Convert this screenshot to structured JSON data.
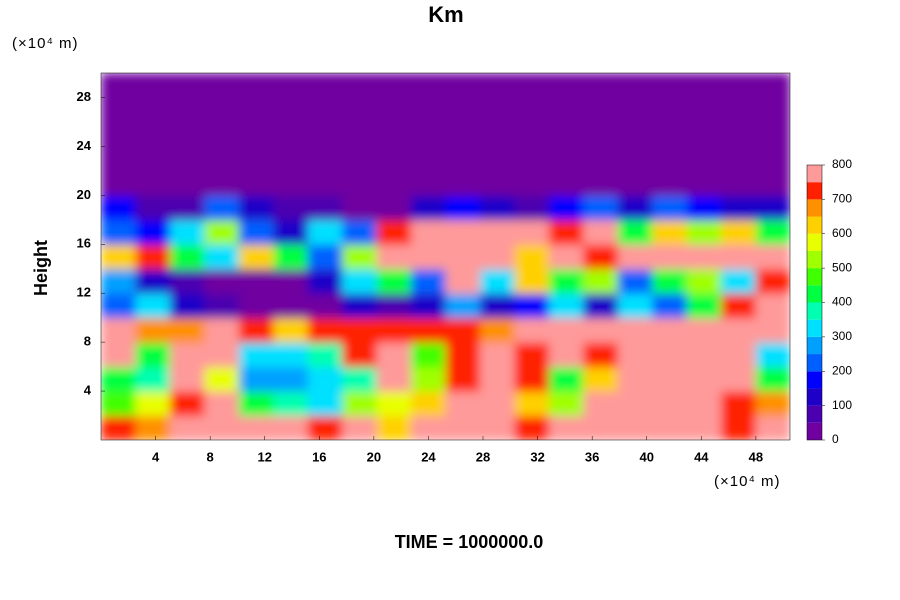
{
  "chart_data": {
    "type": "heatmap",
    "title": "Km",
    "ylabel": "Height",
    "y_unit": "(×10⁴ m)",
    "x_unit": "(×10⁴ m)",
    "footer": "TIME = 1000000.0",
    "xlim": [
      0,
      50.5
    ],
    "ylim": [
      0,
      30
    ],
    "xticks": [
      4,
      8,
      12,
      16,
      20,
      24,
      28,
      32,
      36,
      40,
      44,
      48
    ],
    "yticks": [
      4,
      8,
      12,
      16,
      20,
      24,
      28
    ],
    "levels": [
      0,
      50,
      100,
      150,
      200,
      250,
      300,
      350,
      400,
      450,
      500,
      550,
      600,
      650,
      700,
      750,
      800
    ],
    "colorbar_ticks": [
      0,
      100,
      200,
      300,
      400,
      500,
      600,
      700,
      800
    ],
    "colors": [
      "#7000a0",
      "#4b00b0",
      "#1e00c8",
      "#0000ff",
      "#0060ff",
      "#00a0ff",
      "#00e0ff",
      "#00ffb0",
      "#00ff40",
      "#40ff00",
      "#a0ff00",
      "#e8ff00",
      "#ffd000",
      "#ff9000",
      "#ff2000",
      "#ff9a9a"
    ],
    "z": [
      [
        700,
        650,
        800,
        800,
        800,
        800,
        700,
        800,
        600,
        800,
        800,
        800,
        700,
        800,
        800,
        800,
        800,
        800,
        700,
        800
      ],
      [
        450,
        550,
        700,
        800,
        400,
        350,
        300,
        500,
        550,
        600,
        800,
        800,
        600,
        500,
        800,
        800,
        780,
        800,
        720,
        650
      ],
      [
        400,
        350,
        800,
        550,
        250,
        250,
        300,
        350,
        800,
        500,
        700,
        800,
        700,
        400,
        600,
        800,
        800,
        800,
        800,
        400
      ],
      [
        800,
        400,
        800,
        800,
        300,
        300,
        350,
        720,
        800,
        450,
        700,
        780,
        720,
        800,
        720,
        800,
        800,
        800,
        800,
        300
      ],
      [
        800,
        650,
        650,
        800,
        720,
        600,
        720,
        700,
        720,
        700,
        720,
        650,
        780,
        800,
        800,
        800,
        800,
        800,
        800,
        800
      ],
      [
        200,
        300,
        100,
        50,
        20,
        20,
        20,
        100,
        50,
        100,
        250,
        100,
        150,
        300,
        100,
        300,
        200,
        400,
        700,
        780
      ],
      [
        250,
        100,
        50,
        20,
        20,
        20,
        100,
        300,
        400,
        200,
        780,
        300,
        600,
        400,
        500,
        200,
        400,
        500,
        300,
        700
      ],
      [
        600,
        700,
        400,
        300,
        600,
        400,
        200,
        500,
        800,
        800,
        800,
        800,
        600,
        780,
        700,
        800,
        800,
        800,
        800,
        780
      ],
      [
        200,
        150,
        300,
        500,
        200,
        100,
        300,
        200,
        700,
        800,
        800,
        800,
        800,
        700,
        780,
        400,
        600,
        500,
        600,
        400
      ],
      [
        150,
        50,
        80,
        200,
        100,
        50,
        50,
        20,
        30,
        100,
        150,
        100,
        50,
        150,
        200,
        100,
        200,
        150,
        100,
        100
      ],
      [
        0,
        0,
        0,
        0,
        0,
        0,
        0,
        0,
        0,
        0,
        0,
        0,
        0,
        0,
        0,
        0,
        0,
        0,
        0,
        0
      ],
      [
        0,
        0,
        0,
        0,
        0,
        0,
        0,
        0,
        0,
        0,
        0,
        0,
        0,
        0,
        0,
        0,
        0,
        0,
        0,
        0
      ],
      [
        0,
        0,
        0,
        0,
        0,
        0,
        0,
        0,
        0,
        0,
        0,
        0,
        0,
        0,
        0,
        0,
        0,
        0,
        0,
        0
      ],
      [
        0,
        0,
        0,
        0,
        0,
        0,
        0,
        0,
        0,
        0,
        0,
        0,
        0,
        0,
        0,
        0,
        0,
        0,
        0,
        0
      ],
      [
        0,
        0,
        0,
        0,
        0,
        0,
        0,
        0,
        0,
        0,
        0,
        0,
        0,
        0,
        0,
        0,
        0,
        0,
        0,
        0
      ]
    ]
  }
}
